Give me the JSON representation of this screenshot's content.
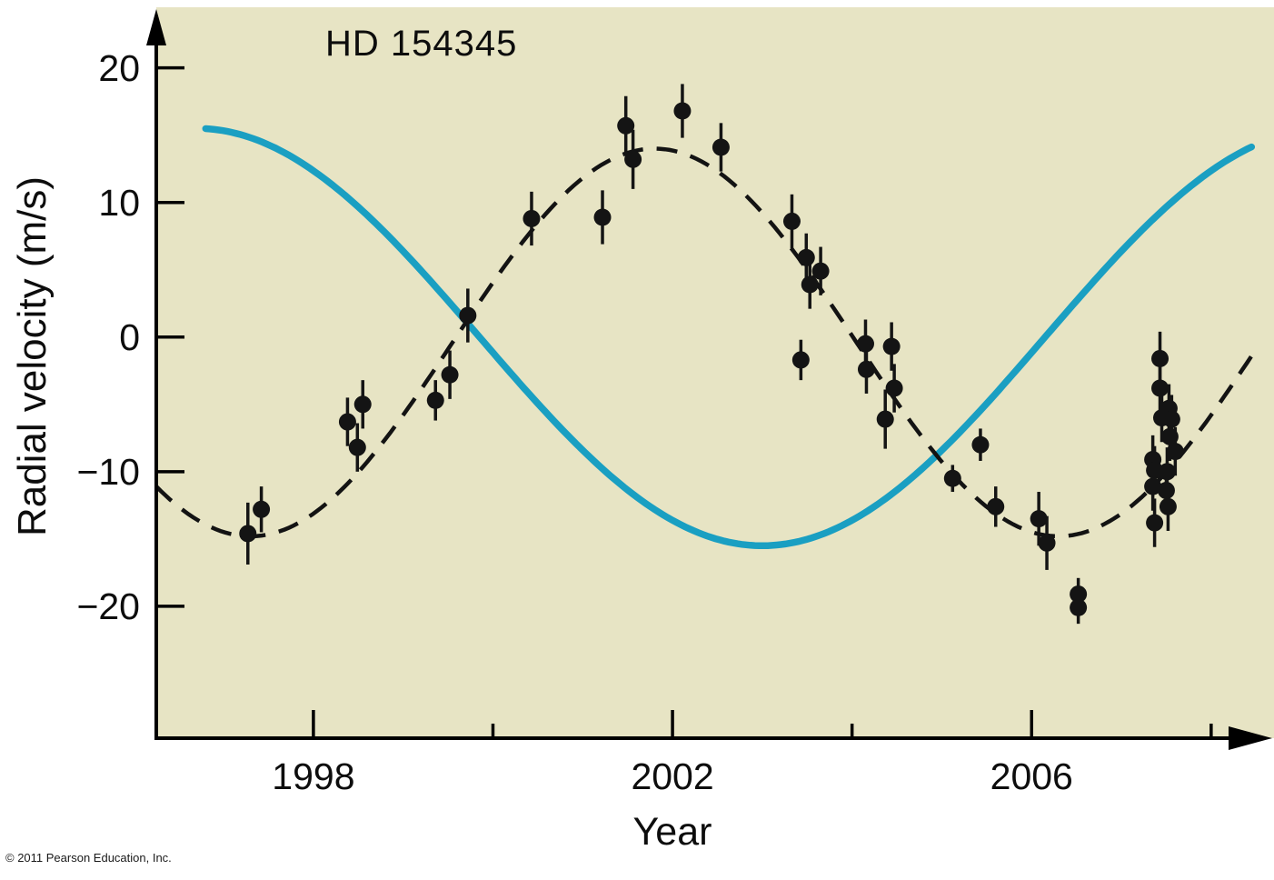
{
  "figure": {
    "footer_copyright": "© 2011 Pearson Education, Inc."
  },
  "colors": {
    "plot_background": "#e7e4c4",
    "model_curve": "#1a9fc2",
    "fit_curve": "#131313",
    "points": "#141414",
    "axis": "#000000"
  },
  "chart_data": {
    "type": "scatter",
    "title": "HD 154345",
    "xlabel": "Year",
    "ylabel": "Radial velocity (m/s)",
    "legend_position": "none",
    "grid": false,
    "x_axis": {
      "label": "Year",
      "major_ticks": [
        1998,
        2002,
        2006
      ],
      "minor_ticks": [
        2000,
        2004,
        2008
      ],
      "lim": [
        1996.25,
        2008.7
      ]
    },
    "y_axis": {
      "label": "Radial velocity (m/s)",
      "ticks": [
        20,
        10,
        0,
        -10,
        -20
      ],
      "lim": [
        -29.8,
        24.5
      ]
    },
    "curves": [
      {
        "name": "model-curve",
        "description": "solid teal sinusoid",
        "style": "solid",
        "color": "#1a9fc2",
        "stroke_width": 7.5,
        "mean": 0,
        "amplitude": 15.5,
        "period_years": 12.6,
        "min_year": 2003.0,
        "start_year": 1996.8,
        "end_year": 2008.45
      },
      {
        "name": "fit-curve",
        "description": "dashed black keplerian fit",
        "style": "dashed",
        "color": "#131313",
        "stroke_width": 4.5,
        "mean": -0.4,
        "amplitude": 14.4,
        "period_years": 9.0,
        "min_year": 2006.3,
        "start_year": 1996.25,
        "end_year": 2008.5
      }
    ],
    "points": [
      {
        "year": 1997.27,
        "v": -14.6,
        "err": 2.3
      },
      {
        "year": 1997.42,
        "v": -12.8,
        "err": 1.7
      },
      {
        "year": 1998.38,
        "v": -6.3,
        "err": 1.8
      },
      {
        "year": 1998.49,
        "v": -8.2,
        "err": 1.8
      },
      {
        "year": 1998.55,
        "v": -5.0,
        "err": 1.8
      },
      {
        "year": 1999.36,
        "v": -4.7,
        "err": 1.5
      },
      {
        "year": 1999.52,
        "v": -2.8,
        "err": 1.8
      },
      {
        "year": 1999.72,
        "v": 1.6,
        "err": 2.0
      },
      {
        "year": 2000.43,
        "v": 8.8,
        "err": 2.0
      },
      {
        "year": 2001.22,
        "v": 8.9,
        "err": 2.0
      },
      {
        "year": 2001.48,
        "v": 15.7,
        "err": 2.2
      },
      {
        "year": 2001.56,
        "v": 13.2,
        "err": 2.2
      },
      {
        "year": 2002.11,
        "v": 16.8,
        "err": 2.0
      },
      {
        "year": 2002.54,
        "v": 14.1,
        "err": 1.8
      },
      {
        "year": 2003.33,
        "v": 8.6,
        "err": 2.0
      },
      {
        "year": 2003.49,
        "v": 5.9,
        "err": 1.8
      },
      {
        "year": 2003.53,
        "v": 3.9,
        "err": 1.8
      },
      {
        "year": 2003.65,
        "v": 4.9,
        "err": 1.8
      },
      {
        "year": 2003.43,
        "v": -1.7,
        "err": 1.5
      },
      {
        "year": 2004.15,
        "v": -0.5,
        "err": 1.8
      },
      {
        "year": 2004.16,
        "v": -2.4,
        "err": 1.8
      },
      {
        "year": 2004.44,
        "v": -0.7,
        "err": 1.8
      },
      {
        "year": 2004.47,
        "v": -3.8,
        "err": 1.8
      },
      {
        "year": 2004.37,
        "v": -6.1,
        "err": 2.2
      },
      {
        "year": 2005.12,
        "v": -10.5,
        "err": 1.0
      },
      {
        "year": 2005.43,
        "v": -8.0,
        "err": 1.2
      },
      {
        "year": 2005.6,
        "v": -12.6,
        "err": 1.5
      },
      {
        "year": 2006.08,
        "v": -13.5,
        "err": 2.0
      },
      {
        "year": 2006.17,
        "v": -15.3,
        "err": 2.0
      },
      {
        "year": 2006.52,
        "v": -19.1,
        "err": 1.2
      },
      {
        "year": 2006.52,
        "v": -20.1,
        "err": 1.2
      },
      {
        "year": 2007.43,
        "v": -1.6,
        "err": 2.0
      },
      {
        "year": 2007.43,
        "v": -3.8,
        "err": 1.8
      },
      {
        "year": 2007.45,
        "v": -6.0,
        "err": 1.8
      },
      {
        "year": 2007.53,
        "v": -5.3,
        "err": 1.8
      },
      {
        "year": 2007.56,
        "v": -6.1,
        "err": 1.8
      },
      {
        "year": 2007.54,
        "v": -7.4,
        "err": 1.8
      },
      {
        "year": 2007.6,
        "v": -8.5,
        "err": 1.8
      },
      {
        "year": 2007.35,
        "v": -9.1,
        "err": 1.8
      },
      {
        "year": 2007.37,
        "v": -9.9,
        "err": 1.8
      },
      {
        "year": 2007.51,
        "v": -10.0,
        "err": 1.8
      },
      {
        "year": 2007.35,
        "v": -11.1,
        "err": 1.8
      },
      {
        "year": 2007.5,
        "v": -11.4,
        "err": 1.8
      },
      {
        "year": 2007.52,
        "v": -12.6,
        "err": 1.8
      },
      {
        "year": 2007.37,
        "v": -13.8,
        "err": 1.8
      }
    ]
  }
}
